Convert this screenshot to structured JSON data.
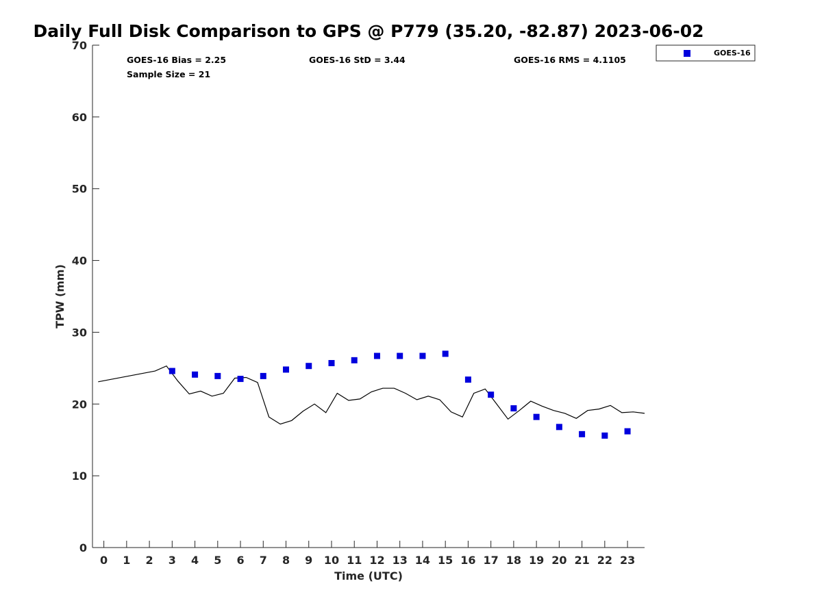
{
  "chart_data": {
    "type": "scatter",
    "title": "Daily Full Disk Comparison to GPS @ P779 (35.20, -82.87) 2023-06-02",
    "xlabel": "Time (UTC)",
    "ylabel": "TPW (mm)",
    "xlim": [
      -0.5,
      23.75
    ],
    "ylim": [
      0,
      70
    ],
    "xticks": [
      "0",
      "1",
      "2",
      "3",
      "4",
      "5",
      "6",
      "7",
      "8",
      "9",
      "10",
      "11",
      "12",
      "13",
      "14",
      "15",
      "16",
      "17",
      "18",
      "19",
      "20",
      "21",
      "22",
      "23"
    ],
    "yticks": [
      "0",
      "10",
      "20",
      "30",
      "40",
      "50",
      "60",
      "70"
    ],
    "grid": false,
    "legend_position": "top-right (outside plot area)",
    "stats": {
      "bias": "GOES-16 Bias = 2.25",
      "std": "GOES-16 StD = 3.44",
      "rms": "GOES-16 RMS = 4.1105",
      "sample_size": "Sample Size = 21"
    },
    "series": [
      {
        "name": "GOES-16",
        "kind": "scatter",
        "marker": "square",
        "color": "#0000dd",
        "x": [
          3,
          4,
          5,
          6,
          7,
          8,
          9,
          10,
          11,
          12,
          13,
          14,
          15,
          16,
          17,
          18,
          19,
          20,
          21,
          22,
          23
        ],
        "y": [
          24.6,
          24.1,
          23.9,
          23.5,
          23.9,
          24.8,
          25.3,
          25.7,
          26.1,
          26.7,
          26.7,
          26.7,
          27.0,
          23.4,
          21.3,
          19.4,
          18.2,
          16.8,
          15.8,
          15.6,
          16.2
        ]
      },
      {
        "kind": "line",
        "color": "#000000",
        "x": [
          -0.25,
          2.25,
          2.75,
          3.25,
          3.75,
          4.25,
          4.75,
          5.25,
          5.75,
          6.25,
          6.75,
          7.25,
          7.75,
          8.25,
          8.75,
          9.25,
          9.75,
          10.25,
          10.75,
          11.25,
          11.75,
          12.25,
          12.75,
          13.25,
          13.75,
          14.25,
          14.75,
          15.25,
          15.75,
          16.25,
          16.75,
          17.25,
          17.75,
          18.25,
          18.75,
          19.25,
          19.75,
          20.25,
          20.75,
          21.25,
          21.75,
          22.25,
          22.75,
          23.25,
          23.75
        ],
        "y": [
          23.1,
          24.6,
          25.3,
          23.2,
          21.4,
          21.8,
          21.1,
          21.5,
          23.6,
          23.7,
          23.0,
          18.2,
          17.2,
          17.7,
          19.0,
          20.0,
          18.8,
          21.5,
          20.5,
          20.7,
          21.7,
          22.2,
          22.2,
          21.5,
          20.6,
          21.1,
          20.6,
          18.9,
          18.2,
          21.5,
          22.1,
          20.0,
          17.9,
          19.1,
          20.4,
          19.7,
          19.1,
          18.7,
          18.0,
          19.1,
          19.3,
          19.8,
          18.8,
          18.9,
          18.7
        ]
      }
    ]
  }
}
